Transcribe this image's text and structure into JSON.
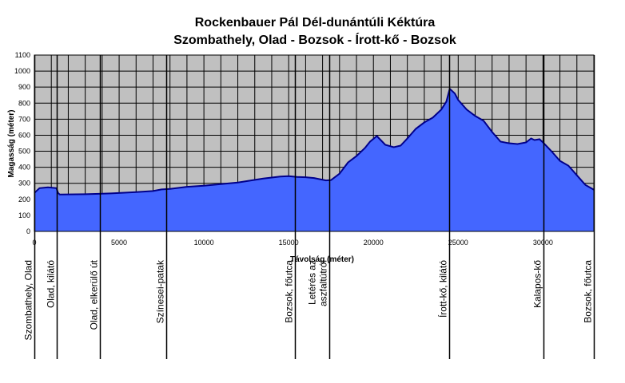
{
  "chart_data": {
    "type": "area",
    "title": "Rockenbauer Pál Dél-dunántúli Kéktúra",
    "subtitle": "Szombathely, Olad - Bozsok - Írott-kő - Bozsok",
    "xlabel": "Távolság (méter)",
    "ylabel": "Magasság (méter)",
    "xlim": [
      0,
      33000
    ],
    "ylim": [
      0,
      1100
    ],
    "x_ticks": [
      0,
      5000,
      10000,
      15000,
      20000,
      25000,
      30000
    ],
    "y_ticks": [
      0,
      100,
      200,
      300,
      400,
      500,
      600,
      700,
      800,
      900,
      1000,
      1100
    ],
    "grid": true,
    "area_color": "#4466ff",
    "line_color": "#00008b",
    "plot_background": "#c0c0c0",
    "series": [
      {
        "x": [
          0,
          300,
          800,
          1300,
          1400,
          1500,
          3000,
          4500,
          6000,
          7000,
          7500,
          8000,
          9000,
          10000,
          11000,
          12000,
          13500,
          14500,
          15000,
          15500,
          16000,
          16500,
          17200,
          17500,
          18000,
          18500,
          19000,
          19500,
          19800,
          20200,
          20700,
          21200,
          21600,
          22000,
          22500,
          23000,
          23500,
          24000,
          24300,
          24500,
          24800,
          25000,
          25500,
          26000,
          26500,
          27000,
          27500,
          28000,
          28500,
          29000,
          29300,
          29500,
          29800,
          30000,
          30500,
          31000,
          31500,
          32000,
          32500,
          33000
        ],
        "y": [
          240,
          270,
          275,
          270,
          240,
          230,
          232,
          237,
          245,
          252,
          262,
          265,
          278,
          285,
          295,
          305,
          330,
          342,
          345,
          340,
          338,
          333,
          318,
          320,
          360,
          430,
          470,
          520,
          560,
          595,
          540,
          525,
          535,
          580,
          640,
          680,
          710,
          760,
          810,
          890,
          860,
          820,
          760,
          720,
          690,
          620,
          560,
          550,
          545,
          555,
          580,
          570,
          575,
          555,
          500,
          440,
          410,
          350,
          290,
          260
        ]
      }
    ],
    "waypoints": [
      {
        "x": 0,
        "label": "Szombathely, Olad"
      },
      {
        "x": 1300,
        "label": "Olad, kilátó"
      },
      {
        "x": 3850,
        "label": "Olad, elkerülő út"
      },
      {
        "x": 7800,
        "label": "Színesei-patak"
      },
      {
        "x": 15350,
        "label": "Bozsok, főutca"
      },
      {
        "x": 17400,
        "label": [
          "Letérés az",
          "aszfaltútról"
        ]
      },
      {
        "x": 24450,
        "label": "Írott-kő, kilátó"
      },
      {
        "x": 30050,
        "label": "Kalapos-kő"
      },
      {
        "x": 33000,
        "label": "Bozsok, főutca"
      }
    ]
  }
}
